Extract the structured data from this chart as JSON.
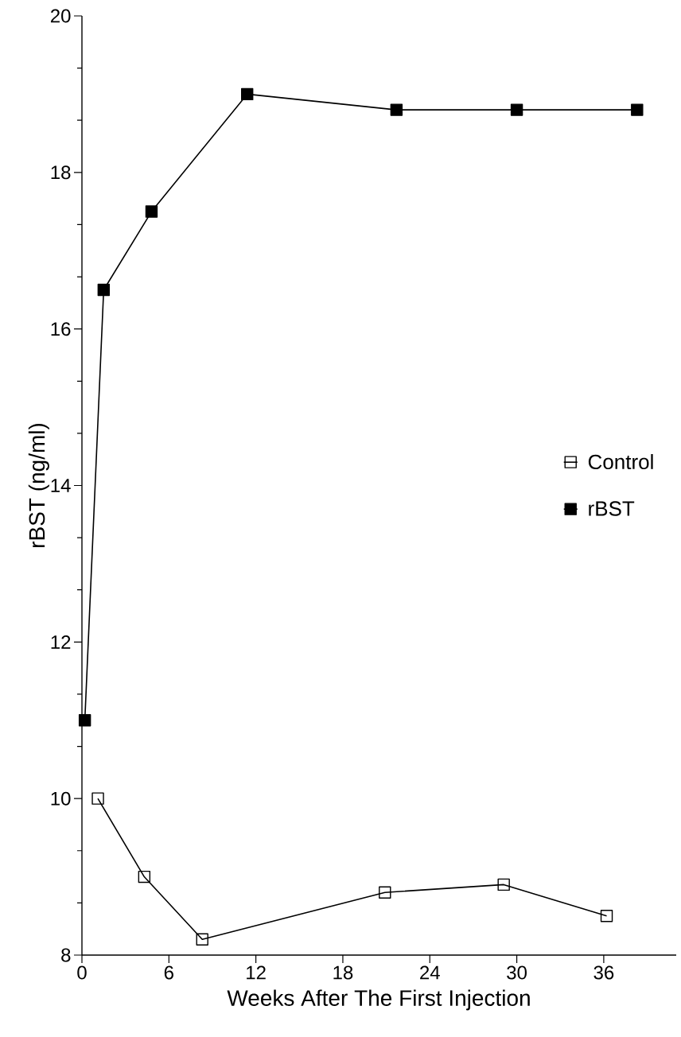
{
  "chart_data": {
    "type": "line",
    "xlabel": "Weeks After The First Injection",
    "ylabel": "rBST   (ng/ml)",
    "xlim": [
      0,
      41
    ],
    "xticks": [
      0,
      6,
      12,
      18,
      24,
      30,
      36
    ],
    "ylim": [
      8,
      20
    ],
    "yticks": [
      8,
      10,
      12,
      14,
      16,
      18,
      20
    ],
    "grid": false,
    "legend": "right",
    "marker": "square",
    "line_style": "solid",
    "series": [
      {
        "name": "Control",
        "color": "#000000",
        "x": [
          1.1,
          4.3,
          8.3,
          20.9,
          29.1,
          36.2
        ],
        "values": [
          10.0,
          9.0,
          8.2,
          8.8,
          8.9,
          8.5
        ]
      },
      {
        "name": "rBST",
        "color": "#000000",
        "x": [
          0.2,
          1.5,
          4.8,
          11.4,
          21.7,
          30.0,
          38.3
        ],
        "values": [
          11.0,
          16.5,
          17.5,
          19.0,
          18.8,
          18.8,
          18.8
        ]
      }
    ]
  }
}
